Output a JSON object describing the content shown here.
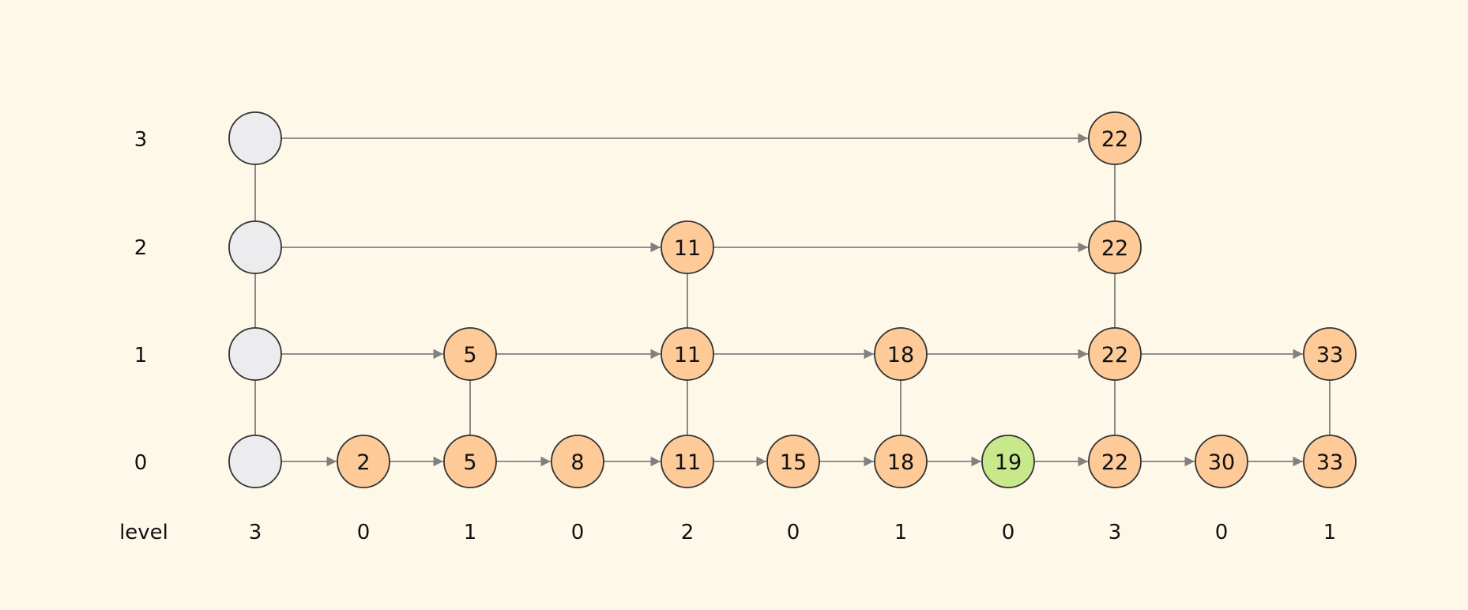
{
  "row_labels": [
    "0",
    "1",
    "2",
    "3"
  ],
  "level_label": "level",
  "colors": {
    "background": "#fdf8e8",
    "node_fill": "#fdca98",
    "head_fill": "#ececee",
    "highlight_fill": "#c8e88c",
    "stroke": "#333333",
    "edge": "#808080"
  },
  "head": {
    "level": 3
  },
  "nodes": [
    {
      "key": "2",
      "level": 0
    },
    {
      "key": "5",
      "level": 1
    },
    {
      "key": "8",
      "level": 0
    },
    {
      "key": "11",
      "level": 2
    },
    {
      "key": "15",
      "level": 0
    },
    {
      "key": "18",
      "level": 1
    },
    {
      "key": "19",
      "level": 0,
      "highlight": true
    },
    {
      "key": "22",
      "level": 3
    },
    {
      "key": "30",
      "level": 0
    },
    {
      "key": "33",
      "level": 1
    }
  ],
  "column_levels": [
    "3",
    "0",
    "1",
    "0",
    "2",
    "0",
    "1",
    "0",
    "3",
    "0",
    "1"
  ]
}
